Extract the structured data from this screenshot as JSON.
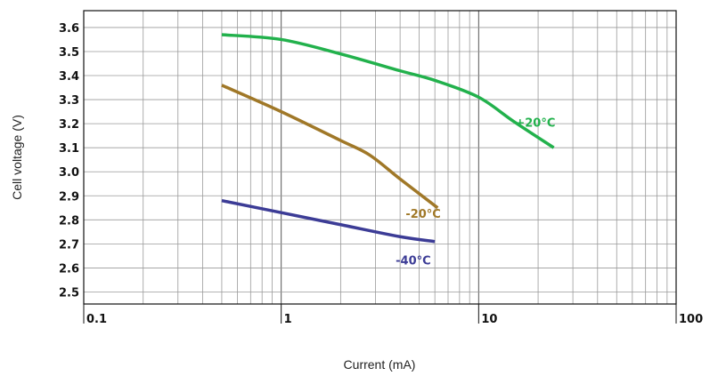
{
  "chart_data": {
    "type": "line",
    "title": "",
    "xlabel": "Current (mA)",
    "ylabel": "Cell voltage (V)",
    "x_scale": "log",
    "xlim": [
      0.1,
      100
    ],
    "ylim": [
      2.45,
      3.67
    ],
    "grid": true,
    "x_ticks": [
      "0.1",
      "1",
      "10",
      "100"
    ],
    "y_ticks": [
      "2.5",
      "2.6",
      "2.7",
      "2.8",
      "2.9",
      "3.0",
      "3.1",
      "3.2",
      "3.3",
      "3.4",
      "3.5",
      "3.6"
    ],
    "series": [
      {
        "name": "+20°C",
        "color": "#22b14c",
        "x": [
          0.5,
          1,
          2,
          4,
          6,
          10,
          15,
          24
        ],
        "y": [
          3.57,
          3.55,
          3.49,
          3.42,
          3.38,
          3.31,
          3.21,
          3.1
        ]
      },
      {
        "name": "-20°C",
        "color": "#a07828",
        "x": [
          0.5,
          1,
          2,
          2.8,
          4,
          6.2
        ],
        "y": [
          3.36,
          3.25,
          3.13,
          3.07,
          2.97,
          2.85
        ]
      },
      {
        "name": "-40°C",
        "color": "#3c3c96",
        "x": [
          0.5,
          1,
          2,
          4,
          6
        ],
        "y": [
          2.88,
          2.83,
          2.78,
          2.73,
          2.71
        ]
      }
    ]
  }
}
